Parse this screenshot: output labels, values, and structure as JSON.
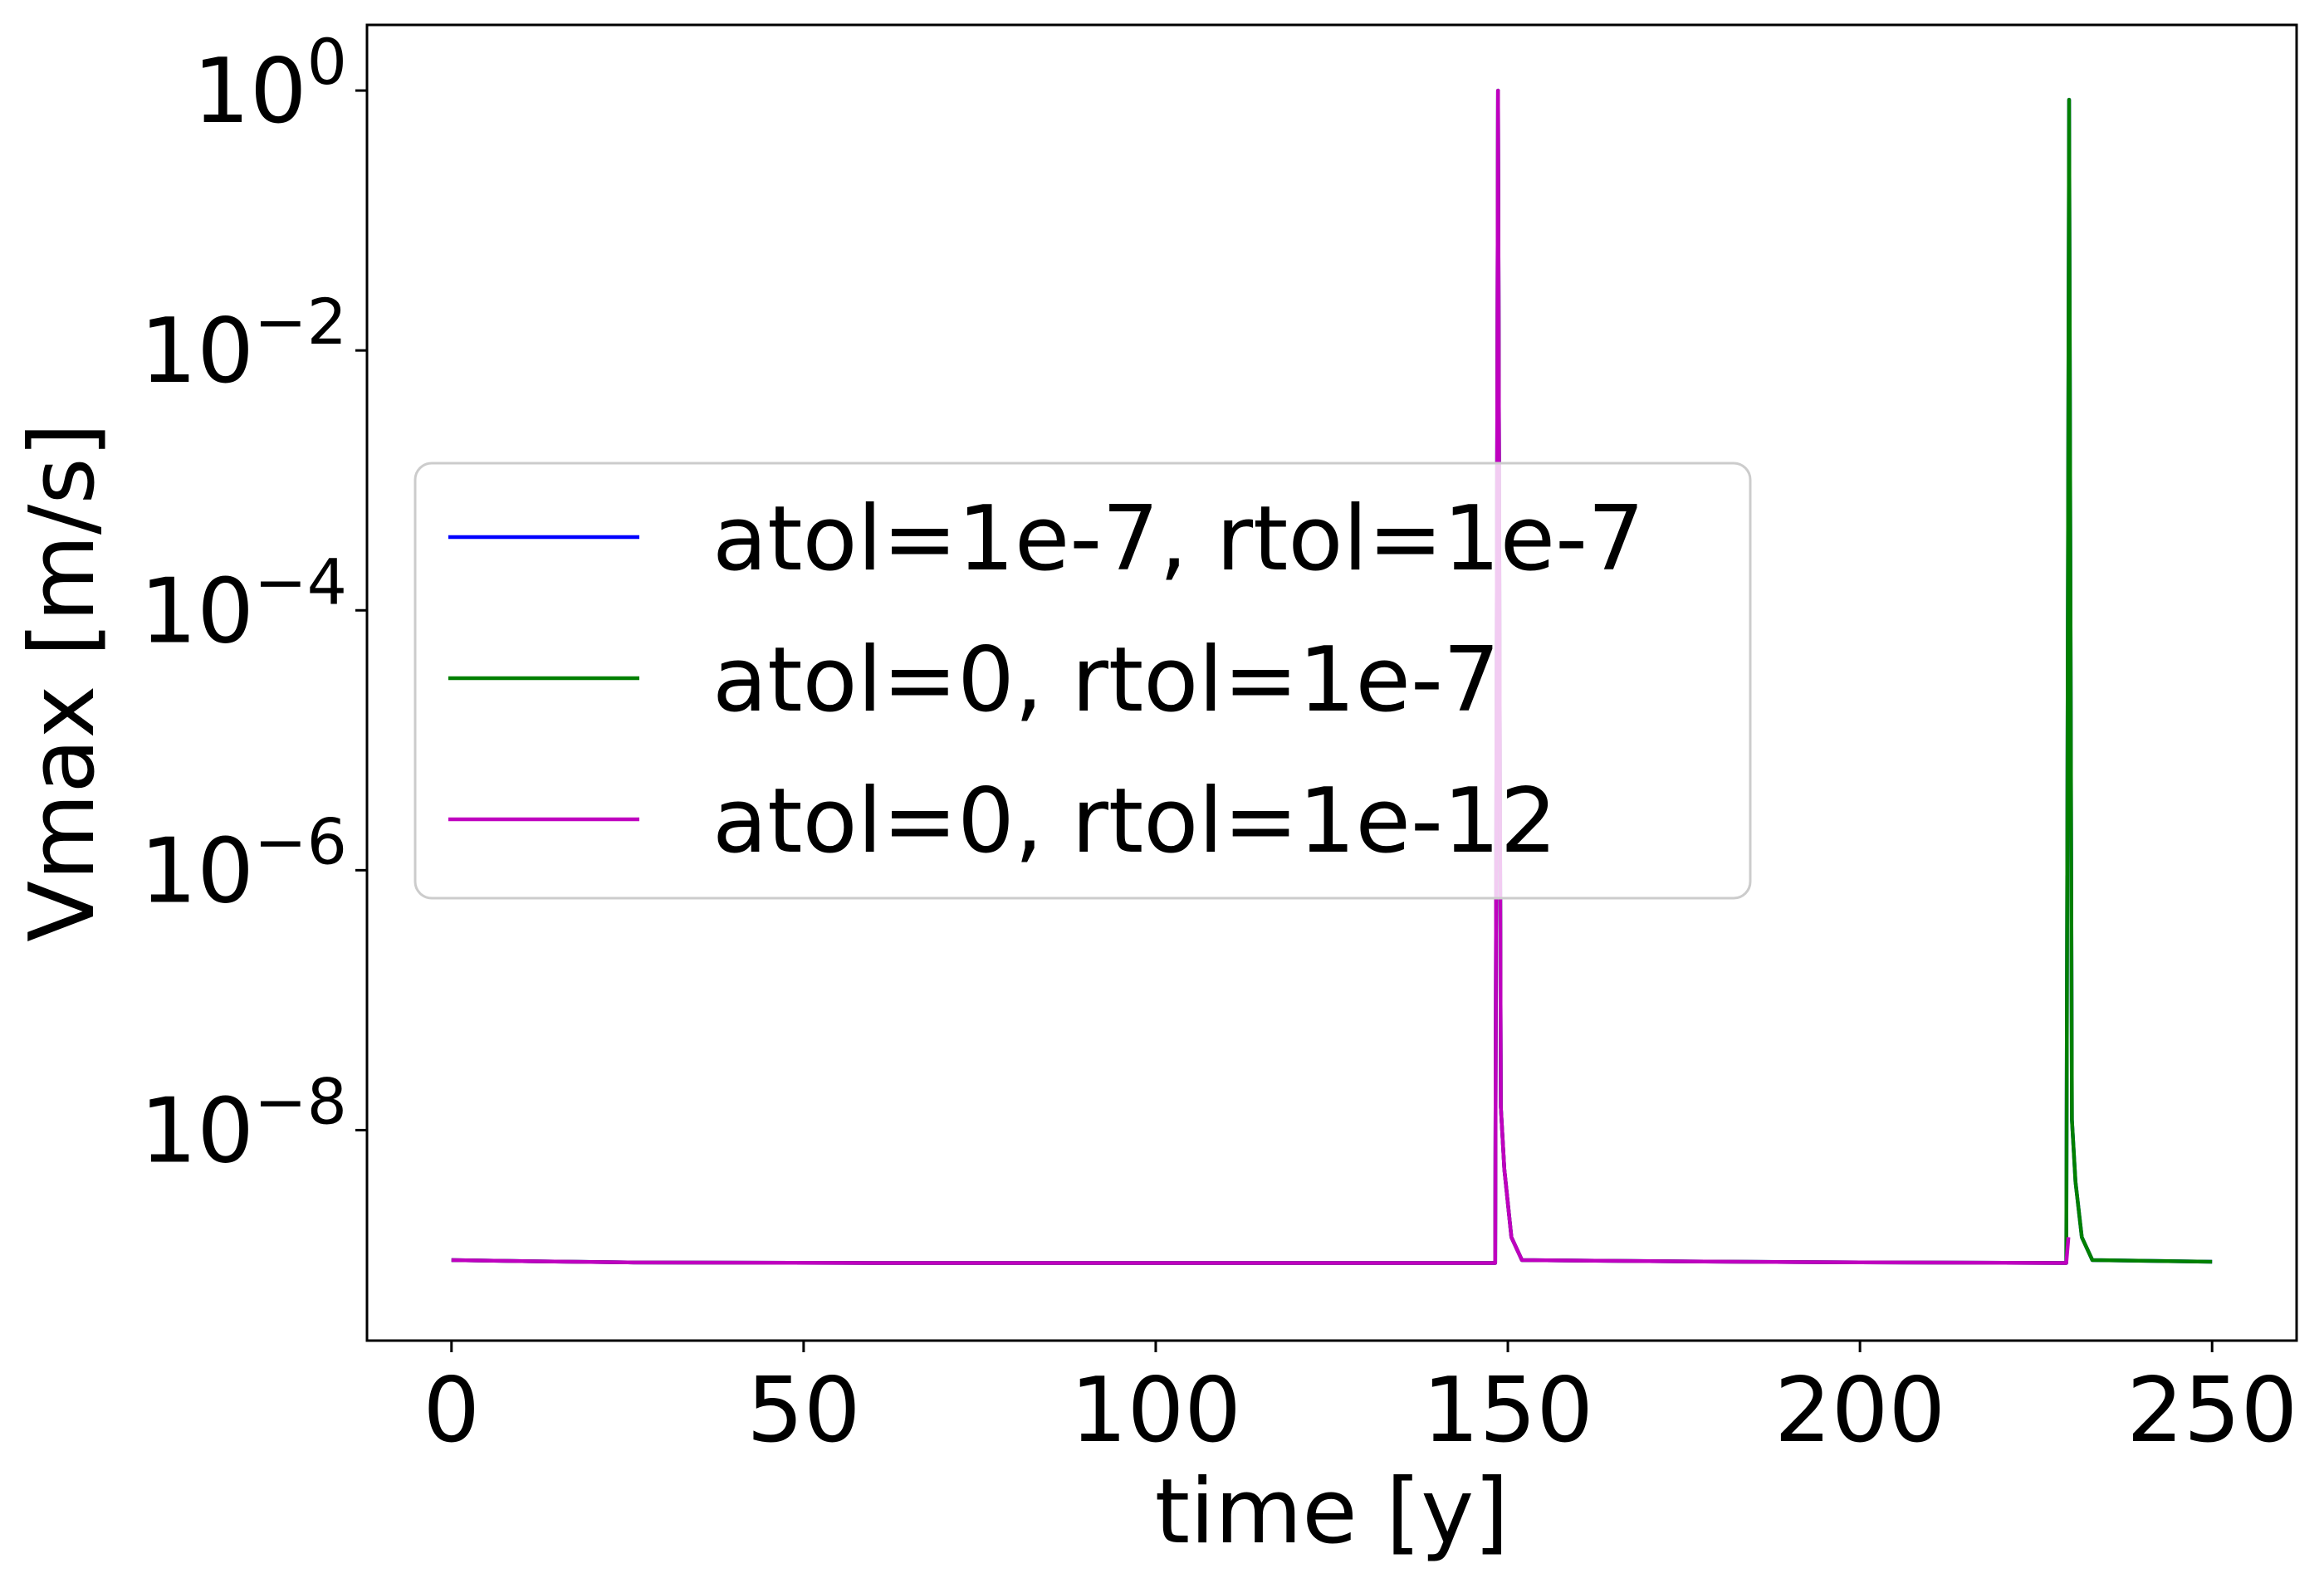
{
  "chart_data": {
    "type": "line",
    "xlabel": "time [y]",
    "ylabel": "Vmax [m/s]",
    "yscale": "log",
    "xlim": [
      -12,
      262
    ],
    "ylim": [
      2.4e-10,
      3.2
    ],
    "xticks": [
      0,
      50,
      100,
      150,
      200,
      250
    ],
    "yticks": [
      {
        "value": 1,
        "base": "10",
        "exp": "0"
      },
      {
        "value": 0.01,
        "base": "10",
        "exp": "−2"
      },
      {
        "value": 0.0001,
        "base": "10",
        "exp": "−4"
      },
      {
        "value": 1e-06,
        "base": "10",
        "exp": "−6"
      },
      {
        "value": 1e-08,
        "base": "10",
        "exp": "−8"
      }
    ],
    "grid": false,
    "legend_position": "center-left",
    "series": [
      {
        "name": "atol=1e-7, rtol=1e-7",
        "color": "#0000ff",
        "points": [
          [
            0,
            1e-09
          ],
          [
            10,
            9.8e-10
          ],
          [
            25,
            9.6e-10
          ],
          [
            60,
            9.5e-10
          ],
          [
            100,
            9.5e-10
          ],
          [
            140,
            9.5e-10
          ],
          [
            148.2,
            9.5e-10
          ],
          [
            148.6,
            1.0
          ],
          [
            149.0,
            1.5e-08
          ],
          [
            149.5,
            5e-09
          ],
          [
            150.5,
            1.5e-09
          ],
          [
            152,
            1e-09
          ],
          [
            170,
            9.8e-10
          ],
          [
            200,
            9.6e-10
          ],
          [
            229.3,
            9.5e-10
          ],
          [
            229.7,
            0.85
          ],
          [
            230.1,
            1.2e-08
          ],
          [
            230.6,
            4e-09
          ],
          [
            231.5,
            1.5e-09
          ],
          [
            233,
            1e-09
          ],
          [
            250,
            9.7e-10
          ]
        ]
      },
      {
        "name": "atol=0, rtol=1e-7",
        "color": "#008000",
        "points": [
          [
            0,
            1e-09
          ],
          [
            10,
            9.8e-10
          ],
          [
            25,
            9.6e-10
          ],
          [
            60,
            9.5e-10
          ],
          [
            100,
            9.5e-10
          ],
          [
            140,
            9.5e-10
          ],
          [
            148.2,
            9.5e-10
          ],
          [
            148.6,
            1.0
          ],
          [
            149.0,
            1.5e-08
          ],
          [
            149.5,
            5e-09
          ],
          [
            150.5,
            1.5e-09
          ],
          [
            152,
            1e-09
          ],
          [
            170,
            9.8e-10
          ],
          [
            200,
            9.6e-10
          ],
          [
            229.3,
            9.5e-10
          ],
          [
            229.7,
            0.85
          ],
          [
            230.1,
            1.2e-08
          ],
          [
            230.6,
            4e-09
          ],
          [
            231.5,
            1.5e-09
          ],
          [
            233,
            1e-09
          ],
          [
            250,
            9.7e-10
          ]
        ]
      },
      {
        "name": "atol=0, rtol=1e-12",
        "color": "#bf00bf",
        "points": [
          [
            0,
            1e-09
          ],
          [
            10,
            9.8e-10
          ],
          [
            25,
            9.6e-10
          ],
          [
            60,
            9.5e-10
          ],
          [
            100,
            9.5e-10
          ],
          [
            140,
            9.5e-10
          ],
          [
            148.2,
            9.5e-10
          ],
          [
            148.6,
            1.0
          ],
          [
            149.0,
            1.5e-08
          ],
          [
            149.5,
            5e-09
          ],
          [
            150.5,
            1.5e-09
          ],
          [
            152,
            1e-09
          ],
          [
            170,
            9.8e-10
          ],
          [
            200,
            9.6e-10
          ],
          [
            229.3,
            9.5e-10
          ],
          [
            229.6,
            1.5e-09
          ]
        ]
      }
    ]
  }
}
